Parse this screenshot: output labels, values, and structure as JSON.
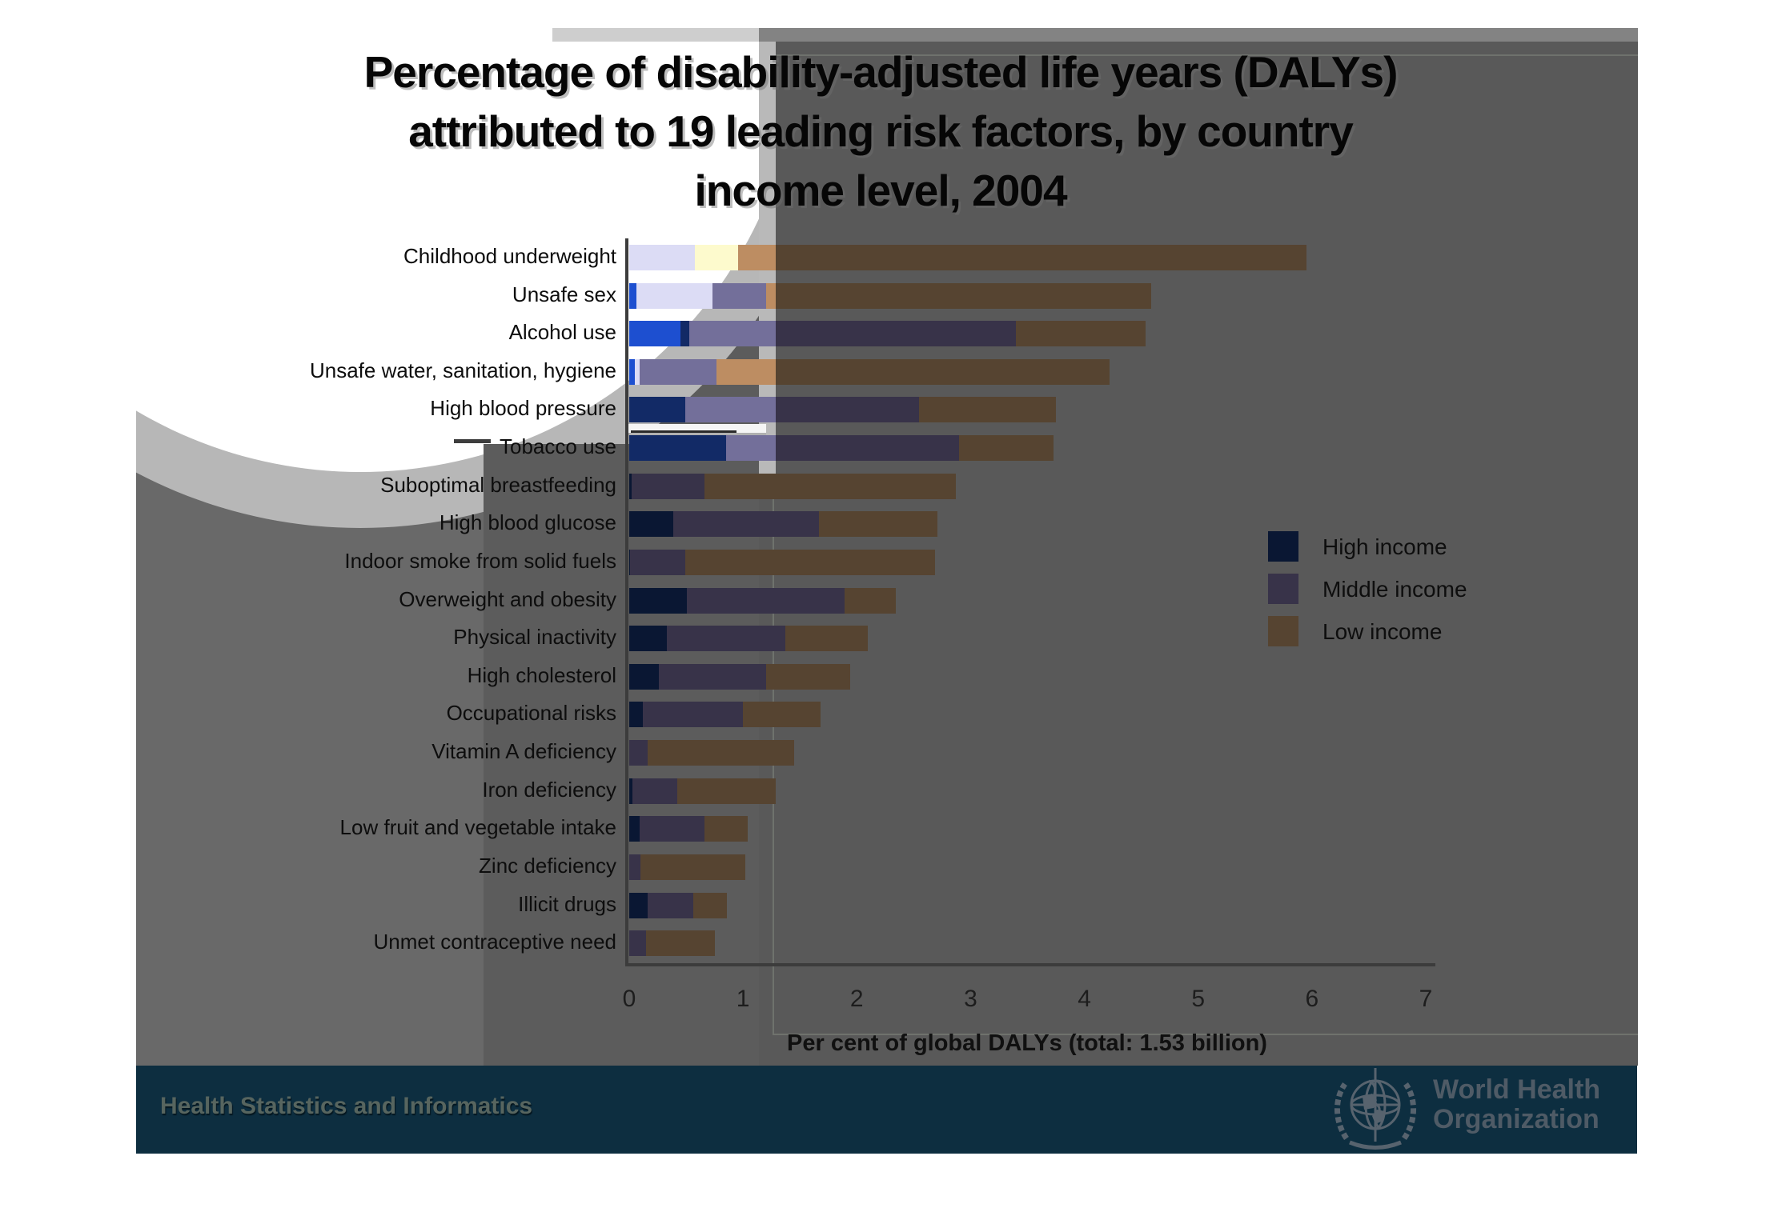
{
  "title": {
    "lines": [
      "Percentage of disability-adjusted life years (DALYs)",
      "attributed to 19 leading risk factors, by country",
      "income level, 2004"
    ]
  },
  "chart_data": {
    "type": "bar",
    "orientation": "horizontal",
    "stacked": true,
    "title": "Percentage of disability-adjusted life years (DALYs) attributed to 19 leading risk factors, by country income level, 2004",
    "xlabel": "Per cent of global DALYs (total: 1.53 billion)",
    "xlim": [
      0,
      7
    ],
    "xticks": [
      0,
      1,
      2,
      3,
      4,
      5,
      6,
      7
    ],
    "grid": false,
    "legend_position": "center-right",
    "categories": [
      "Childhood underweight",
      "Unsafe sex",
      "Alcohol use",
      "Unsafe water, sanitation, hygiene",
      "High blood pressure",
      "Tobacco use",
      "Suboptimal breastfeeding",
      "High blood glucose",
      "Indoor smoke from solid fuels",
      "Overweight and obesity",
      "Physical inactivity",
      "High cholesterol",
      "Occupational risks",
      "Vitamin A deficiency",
      "Iron deficiency",
      "Low fruit and vegetable intake",
      "Zinc deficiency",
      "Illicit drugs",
      "Unmet contraceptive need"
    ],
    "series": [
      {
        "name": "High income",
        "values": [
          0.0,
          0.06,
          0.53,
          0.05,
          0.49,
          0.85,
          0.02,
          0.39,
          0.01,
          0.51,
          0.33,
          0.26,
          0.12,
          0.0,
          0.03,
          0.09,
          0.0,
          0.16,
          0.0
        ]
      },
      {
        "name": "Middle income",
        "values": [
          0.58,
          1.14,
          2.87,
          0.72,
          2.06,
          2.05,
          0.64,
          1.28,
          0.48,
          1.38,
          1.04,
          0.94,
          0.88,
          0.16,
          0.39,
          0.57,
          0.1,
          0.4,
          0.15
        ]
      },
      {
        "name": "Low income",
        "values": [
          5.37,
          3.39,
          1.14,
          3.45,
          1.2,
          0.83,
          2.21,
          1.04,
          2.2,
          0.45,
          0.73,
          0.74,
          0.68,
          1.29,
          0.87,
          0.38,
          0.92,
          0.3,
          0.6
        ]
      }
    ],
    "totals": [
      5.95,
      4.59,
      4.54,
      4.22,
      3.75,
      3.73,
      2.87,
      2.71,
      2.69,
      2.34,
      2.1,
      1.94,
      1.68,
      1.45,
      1.29,
      1.04,
      1.02,
      0.86,
      0.75
    ]
  },
  "legend": {
    "items": [
      {
        "label": "High income",
        "color": "#0a1733"
      },
      {
        "label": "Middle income",
        "color": "#383349"
      },
      {
        "label": "Low income",
        "color": "#564431"
      }
    ]
  },
  "palette": {
    "high": {
      "white": "#1d4fd0",
      "ring": "#122a66",
      "panel": "#0a1733"
    },
    "middle": {
      "white": "#dcdcf5",
      "ring": "#736f9a",
      "panel": "#383349"
    },
    "low": {
      "white": "#fdfacd",
      "ring": "#bd8d62",
      "panel": "#564431"
    }
  },
  "footer": {
    "department": "Health Statistics and Informatics",
    "logo_line1": "World Health",
    "logo_line2": "Organization"
  }
}
